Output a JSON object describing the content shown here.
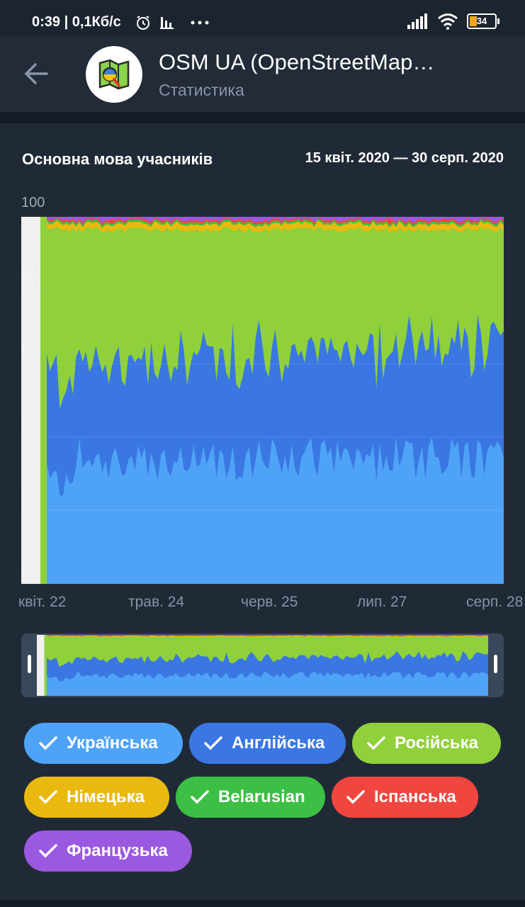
{
  "status": {
    "time": "0:39",
    "speed": "0,1Кб/с",
    "battery": "34"
  },
  "header": {
    "title": "OSM UA (OpenStreetMap…",
    "subtitle": "Статистика"
  },
  "chart": {
    "title": "Основна мова учасників",
    "date_range": "15 квіт. 2020 — 30 серп. 2020",
    "y_ticks": [
      "100",
      "80",
      "60",
      "40",
      "20",
      "0"
    ],
    "x_ticks": [
      "квіт. 22",
      "трав. 24",
      "черв. 25",
      "лип. 27",
      "серп. 28"
    ]
  },
  "chart_data": {
    "type": "area",
    "title": "Основна мова учасників",
    "ylim": [
      0,
      100
    ],
    "x_range": [
      "15 квіт. 2020",
      "30 серп. 2020"
    ],
    "stacked": true,
    "series": [
      {
        "name": "Українська",
        "color": "#4fa3f7",
        "approx_share": 36
      },
      {
        "name": "Англійська",
        "color": "#3a77e2",
        "approx_share": 29
      },
      {
        "name": "Російська",
        "color": "#8fd03b",
        "approx_share": 33
      },
      {
        "name": "Німецька",
        "color": "#e9b910",
        "approx_share": 1
      },
      {
        "name": "Belarusian",
        "color": "#3cbf44",
        "approx_share": 0.5
      },
      {
        "name": "Іспанська",
        "color": "#f0463f",
        "approx_share": 0.5
      },
      {
        "name": "Французька",
        "color": "#9b59e0",
        "approx_share": 0.2
      }
    ]
  },
  "legend": [
    {
      "label": "Українська",
      "color": "#4fa3f7"
    },
    {
      "label": "Англійська",
      "color": "#3a77e2"
    },
    {
      "label": "Російська",
      "color": "#8fd03b"
    },
    {
      "label": "Німецька",
      "color": "#e9b910"
    },
    {
      "label": "Belarusian",
      "color": "#3cbf44"
    },
    {
      "label": "Іспанська",
      "color": "#f0463f"
    },
    {
      "label": "Французька",
      "color": "#9b59e0"
    }
  ]
}
